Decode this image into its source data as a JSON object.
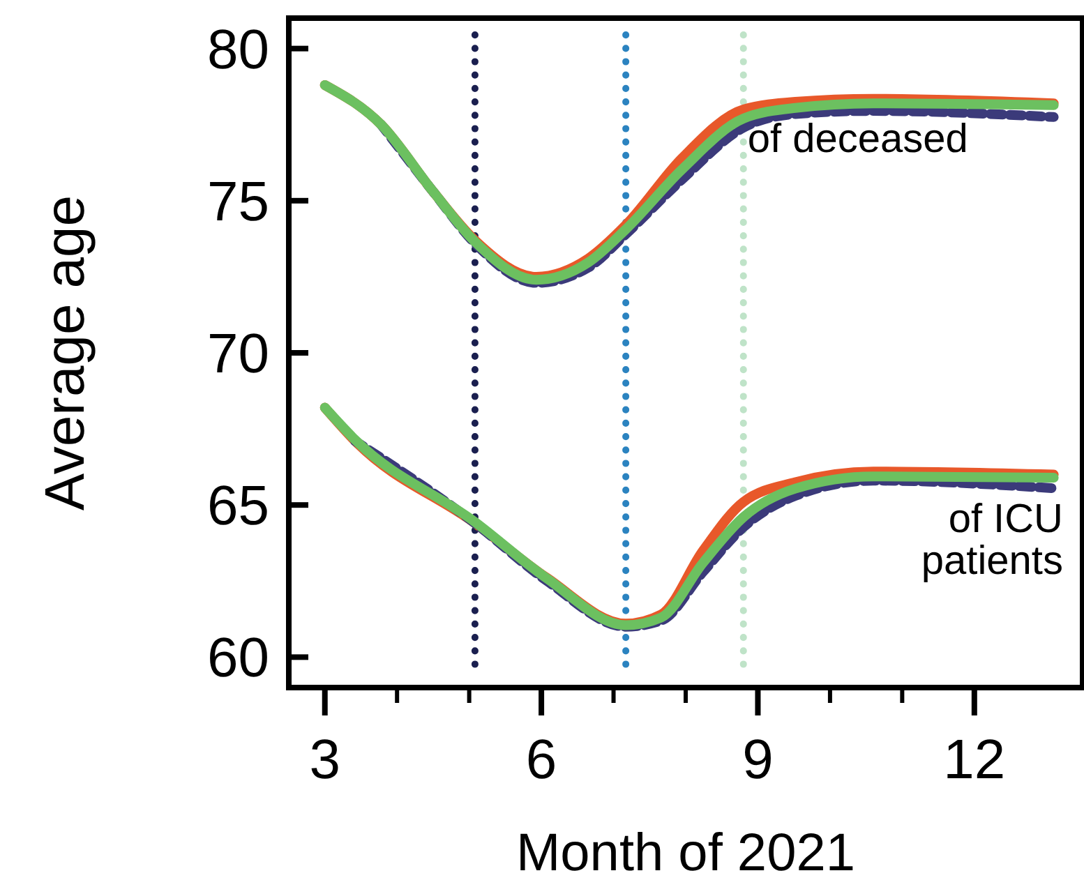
{
  "chart_data": {
    "type": "line",
    "xlabel": "Month of 2021",
    "ylabel": "Average age",
    "xlim": [
      2.5,
      13.5
    ],
    "ylim": [
      59,
      81
    ],
    "xticks": [
      3,
      {
        "value": 4,
        "label": null
      },
      {
        "value": 5,
        "label": null
      },
      6,
      {
        "value": 7,
        "label": null
      },
      {
        "value": 8,
        "label": null
      },
      9,
      {
        "value": 10,
        "label": null
      },
      {
        "value": 11,
        "label": null
      },
      12
    ],
    "yticks": [
      60,
      65,
      70,
      75,
      80
    ],
    "grid": false,
    "ref_lines": [
      {
        "axis": "x",
        "value": 5.08,
        "color": "#1a1f4f",
        "line_style": "dotted"
      },
      {
        "axis": "x",
        "value": 7.17,
        "color": "#2b83c0",
        "line_style": "dotted"
      },
      {
        "axis": "x",
        "value": 8.8,
        "color": "#bfe3c8",
        "line_style": "dotted"
      }
    ],
    "annotations": [
      "of deceased",
      "of ICU patients"
    ],
    "series": [
      {
        "color": "#e8582a",
        "line_style": "solid",
        "x": [
          3,
          3.78,
          4.5,
          5.08,
          5.93,
          6.65,
          7.17,
          7.95,
          8.8,
          9.52,
          10.6,
          13.1
        ],
        "values": [
          78.8,
          77.5,
          75.3,
          73.7,
          72.5,
          73.1,
          74.2,
          76.4,
          78.0,
          78.25,
          78.35,
          78.2
        ]
      },
      {
        "color": "#3b3a7a",
        "line_style": "dashed",
        "x": [
          3.78,
          4.5,
          5.08,
          5.93,
          6.65,
          7.17,
          7.95,
          8.8,
          9.52,
          10.6,
          13.1
        ],
        "values": [
          77.5,
          75.3,
          73.6,
          72.3,
          72.8,
          73.9,
          75.7,
          77.4,
          77.85,
          77.95,
          77.75
        ]
      },
      {
        "color": "#6cc060",
        "line_style": "solid",
        "x": [
          3,
          3.78,
          4.5,
          5.08,
          5.93,
          6.65,
          7.17,
          7.95,
          8.8,
          9.52,
          10.6,
          13.1
        ],
        "values": [
          78.8,
          77.5,
          75.3,
          73.65,
          72.4,
          72.97,
          74.06,
          76.03,
          77.7,
          78.05,
          78.2,
          78.14
        ]
      },
      {
        "color": "#e8582a",
        "line_style": "solid",
        "x": [
          3,
          3.42,
          5.08,
          6.08,
          7.17,
          7.66,
          8.24,
          8.8,
          9.52,
          10.6,
          13.1
        ],
        "values": [
          68.2,
          67.1,
          64.4,
          62.6,
          61.1,
          61.4,
          63.5,
          65.1,
          65.75,
          66.1,
          66.0
        ]
      },
      {
        "color": "#3b3a7a",
        "line_style": "dashed",
        "x": [
          3.42,
          5.08,
          6.08,
          7.17,
          7.66,
          8.24,
          8.8,
          9.52,
          10.6,
          13.1
        ],
        "values": [
          67.1,
          64.4,
          62.5,
          61.0,
          61.2,
          62.8,
          64.27,
          65.3,
          65.8,
          65.55
        ]
      },
      {
        "color": "#6cc060",
        "line_style": "solid",
        "x": [
          3,
          3.42,
          5.08,
          6.08,
          7.17,
          7.66,
          8.24,
          8.8,
          9.52,
          10.6,
          13.1
        ],
        "values": [
          68.2,
          67.14,
          64.44,
          62.58,
          61.05,
          61.3,
          63.1,
          64.6,
          65.54,
          65.94,
          65.9
        ]
      }
    ]
  }
}
